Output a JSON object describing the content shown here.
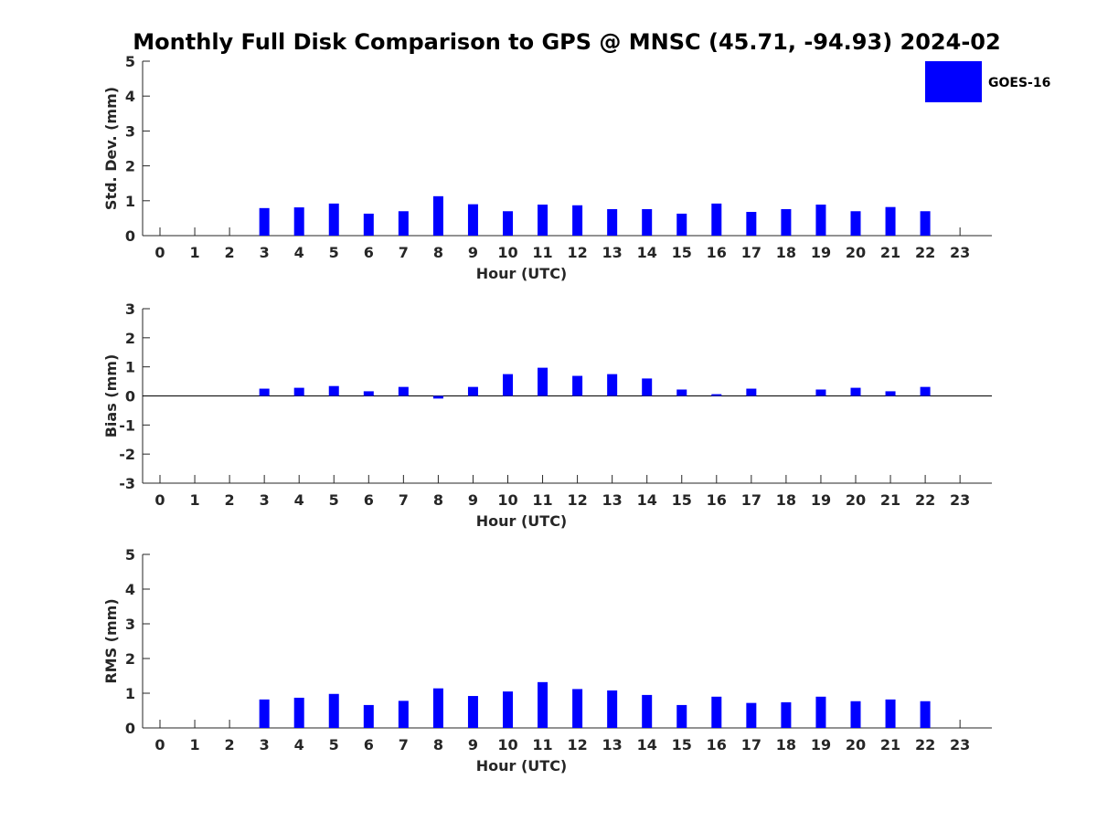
{
  "title": "Monthly Full Disk Comparison to GPS @ MNSC (45.71, -94.93) 2024-02",
  "colors": {
    "bar": "#0000ff",
    "axis": "#262626",
    "zero_line": "#000000"
  },
  "chart_data": [
    {
      "type": "bar",
      "title": "Monthly Full Disk Comparison to GPS @ MNSC (45.71, -94.93) 2024-02",
      "xlabel": "Hour (UTC)",
      "ylabel": "Std. Dev. (mm)",
      "ylim": [
        0,
        5
      ],
      "yticks": [
        "0",
        "1",
        "2",
        "3",
        "4",
        "5"
      ],
      "categories": [
        "0",
        "1",
        "2",
        "3",
        "4",
        "5",
        "6",
        "7",
        "8",
        "9",
        "10",
        "11",
        "12",
        "13",
        "14",
        "15",
        "16",
        "17",
        "18",
        "19",
        "20",
        "21",
        "22",
        "23"
      ],
      "series": [
        {
          "name": "GOES-16",
          "values": [
            null,
            null,
            null,
            0.79,
            0.81,
            0.92,
            0.63,
            0.7,
            1.13,
            0.9,
            0.7,
            0.89,
            0.87,
            0.76,
            0.76,
            0.63,
            0.92,
            0.68,
            0.76,
            0.89,
            0.7,
            0.82,
            0.7,
            null
          ]
        }
      ],
      "legend": {
        "entries": [
          "GOES-16"
        ],
        "position": "top-right"
      },
      "grid": false
    },
    {
      "type": "bar",
      "xlabel": "Hour (UTC)",
      "ylabel": "Bias (mm)",
      "ylim": [
        -3,
        3
      ],
      "yticks": [
        "-3",
        "-2",
        "-1",
        "0",
        "1",
        "2",
        "3"
      ],
      "categories": [
        "0",
        "1",
        "2",
        "3",
        "4",
        "5",
        "6",
        "7",
        "8",
        "9",
        "10",
        "11",
        "12",
        "13",
        "14",
        "15",
        "16",
        "17",
        "18",
        "19",
        "20",
        "21",
        "22",
        "23"
      ],
      "series": [
        {
          "name": "GOES-16",
          "values": [
            null,
            null,
            null,
            0.25,
            0.28,
            0.34,
            0.16,
            0.31,
            -0.09,
            0.31,
            0.75,
            0.97,
            0.69,
            0.75,
            0.6,
            0.22,
            0.06,
            0.25,
            null,
            0.22,
            0.28,
            0.16,
            0.31,
            null
          ]
        }
      ],
      "grid": false
    },
    {
      "type": "bar",
      "xlabel": "Hour (UTC)",
      "ylabel": "RMS (mm)",
      "ylim": [
        0,
        5
      ],
      "yticks": [
        "0",
        "1",
        "2",
        "3",
        "4",
        "5"
      ],
      "categories": [
        "0",
        "1",
        "2",
        "3",
        "4",
        "5",
        "6",
        "7",
        "8",
        "9",
        "10",
        "11",
        "12",
        "13",
        "14",
        "15",
        "16",
        "17",
        "18",
        "19",
        "20",
        "21",
        "22",
        "23"
      ],
      "series": [
        {
          "name": "GOES-16",
          "values": [
            null,
            null,
            null,
            0.82,
            0.87,
            0.98,
            0.66,
            0.78,
            1.14,
            0.92,
            1.05,
            1.32,
            1.12,
            1.08,
            0.95,
            0.66,
            0.9,
            0.72,
            0.74,
            0.9,
            0.77,
            0.82,
            0.77,
            null
          ]
        }
      ],
      "grid": false
    }
  ]
}
